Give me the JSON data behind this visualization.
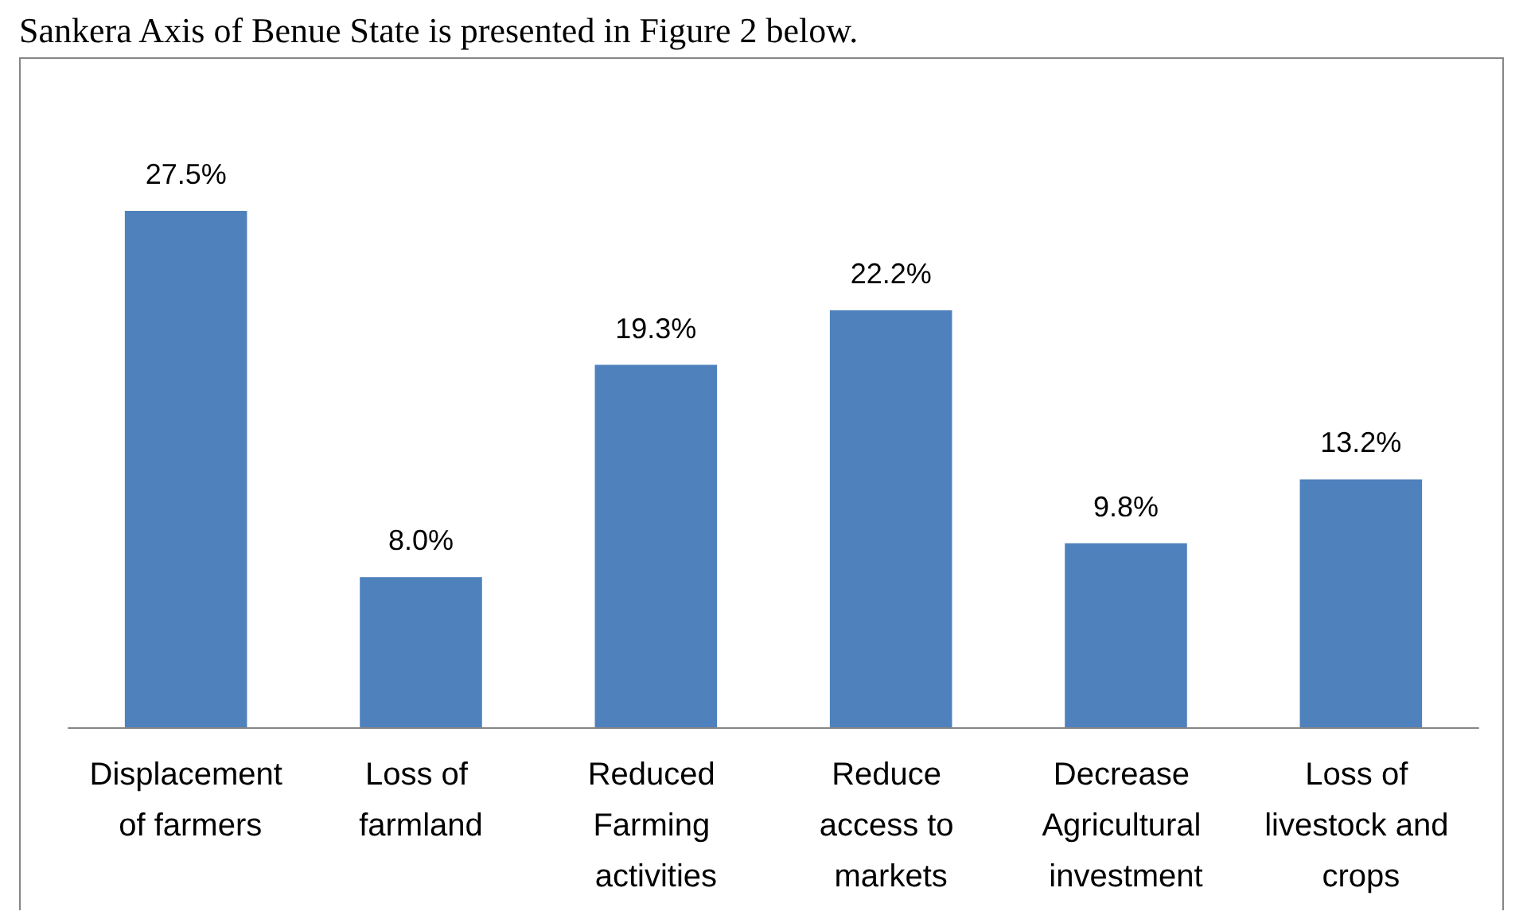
{
  "chart_data": {
    "type": "bar",
    "categories": [
      "Displacement of farmers",
      "Loss of farmland",
      "Reduced Farming activities",
      "Reduce access to markets",
      "Decrease Agricultural investment",
      "Loss of livestock and crops"
    ],
    "values": [
      27.5,
      8.0,
      19.3,
      22.2,
      9.8,
      13.2
    ],
    "value_labels": [
      "27.5%",
      "8.0%",
      "19.3%",
      "22.2%",
      "9.8%",
      "13.2%"
    ],
    "color": "#4f81bd",
    "annotations": [
      "Sankera Axis of Benue State is presented in Figure 2 below."
    ]
  }
}
